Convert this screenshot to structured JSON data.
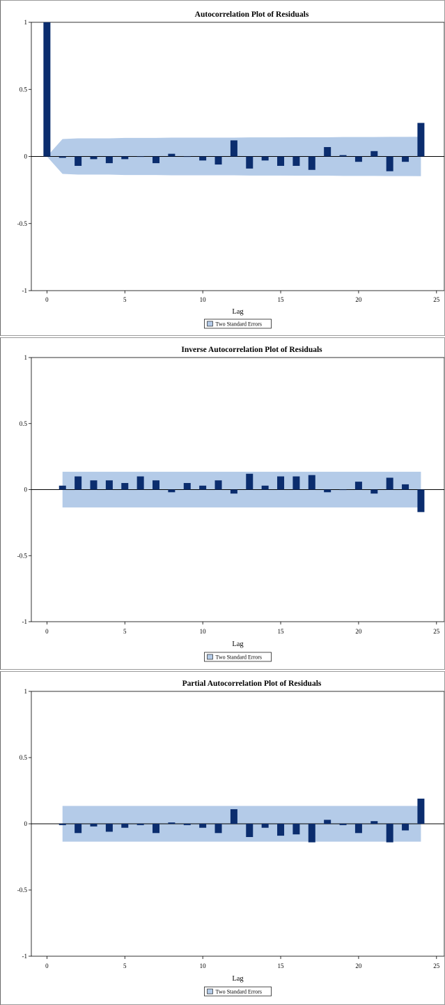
{
  "chart_data": [
    {
      "type": "bar",
      "title": "Autocorrelation Plot of Residuals",
      "xlabel": "Lag",
      "ylabel": "",
      "xlim": [
        -1,
        25.5
      ],
      "ylim": [
        -1,
        1
      ],
      "xticks": [
        0,
        5,
        10,
        15,
        20,
        25
      ],
      "yticks": [
        -1,
        -0.5,
        0,
        0.5,
        1
      ],
      "ytick_labels": [
        "-1",
        "-0.5",
        "0",
        "0.5",
        "1"
      ],
      "legend": {
        "label": "Two Standard Errors",
        "placement": "bottom-center"
      },
      "x": [
        0,
        1,
        2,
        3,
        4,
        5,
        6,
        7,
        8,
        9,
        10,
        11,
        12,
        13,
        14,
        15,
        16,
        17,
        18,
        19,
        20,
        21,
        22,
        23,
        24
      ],
      "values": [
        1.0,
        -0.01,
        -0.07,
        -0.02,
        -0.05,
        -0.02,
        0.0,
        -0.05,
        0.02,
        0.0,
        -0.03,
        -0.06,
        0.12,
        -0.09,
        -0.03,
        -0.07,
        -0.07,
        -0.1,
        0.07,
        0.01,
        -0.04,
        0.04,
        -0.11,
        -0.04,
        0.25
      ],
      "band": {
        "x": [
          0,
          1,
          2,
          3,
          4,
          5,
          6,
          7,
          8,
          9,
          10,
          11,
          12,
          13,
          14,
          15,
          16,
          17,
          18,
          19,
          20,
          21,
          22,
          23,
          24
        ],
        "upper": [
          0.0,
          0.13,
          0.135,
          0.135,
          0.135,
          0.138,
          0.138,
          0.138,
          0.14,
          0.14,
          0.14,
          0.14,
          0.14,
          0.142,
          0.142,
          0.142,
          0.143,
          0.143,
          0.143,
          0.145,
          0.145,
          0.145,
          0.146,
          0.146,
          0.147
        ],
        "lower": [
          0.0,
          -0.13,
          -0.135,
          -0.135,
          -0.135,
          -0.138,
          -0.138,
          -0.138,
          -0.14,
          -0.14,
          -0.14,
          -0.14,
          -0.14,
          -0.142,
          -0.142,
          -0.142,
          -0.143,
          -0.143,
          -0.143,
          -0.145,
          -0.145,
          -0.145,
          -0.146,
          -0.146,
          -0.147
        ]
      },
      "colors": {
        "bar": "#0b2d6e",
        "band": "#b4cbe8",
        "baseline": "#000000"
      }
    },
    {
      "type": "bar",
      "title": "Inverse Autocorrelation Plot of Residuals",
      "xlabel": "Lag",
      "ylabel": "",
      "xlim": [
        -1,
        25.5
      ],
      "ylim": [
        -1,
        1
      ],
      "xticks": [
        0,
        5,
        10,
        15,
        20,
        25
      ],
      "yticks": [
        -1,
        -0.5,
        0,
        0.5,
        1
      ],
      "ytick_labels": [
        "-1",
        "-0.5",
        "0",
        "0.5",
        "1"
      ],
      "legend": {
        "label": "Two Standard Errors",
        "placement": "bottom-center"
      },
      "x": [
        1,
        2,
        3,
        4,
        5,
        6,
        7,
        8,
        9,
        10,
        11,
        12,
        13,
        14,
        15,
        16,
        17,
        18,
        19,
        20,
        21,
        22,
        23,
        24
      ],
      "values": [
        0.03,
        0.1,
        0.07,
        0.07,
        0.05,
        0.1,
        0.07,
        -0.02,
        0.05,
        0.03,
        0.07,
        -0.03,
        0.12,
        0.03,
        0.1,
        0.1,
        0.11,
        -0.02,
        0.0,
        0.06,
        -0.03,
        0.09,
        0.04,
        -0.17
      ],
      "band": {
        "x": [
          1,
          24
        ],
        "upper": [
          0.135,
          0.135
        ],
        "lower": [
          -0.135,
          -0.135
        ]
      },
      "colors": {
        "bar": "#0b2d6e",
        "band": "#b4cbe8",
        "baseline": "#000000"
      }
    },
    {
      "type": "bar",
      "title": "Partial Autocorrelation Plot of Residuals",
      "xlabel": "Lag",
      "ylabel": "",
      "xlim": [
        -1,
        25.5
      ],
      "ylim": [
        -1,
        1
      ],
      "xticks": [
        0,
        5,
        10,
        15,
        20,
        25
      ],
      "yticks": [
        -1,
        -0.5,
        0,
        0.5,
        1
      ],
      "ytick_labels": [
        "-1",
        "-0.5",
        "0",
        "0.5",
        "1"
      ],
      "legend": {
        "label": "Two Standard Errors",
        "placement": "bottom-center"
      },
      "x": [
        1,
        2,
        3,
        4,
        5,
        6,
        7,
        8,
        9,
        10,
        11,
        12,
        13,
        14,
        15,
        16,
        17,
        18,
        19,
        20,
        21,
        22,
        23,
        24
      ],
      "values": [
        -0.01,
        -0.07,
        -0.02,
        -0.06,
        -0.03,
        -0.01,
        -0.07,
        0.01,
        -0.01,
        -0.03,
        -0.07,
        0.11,
        -0.1,
        -0.03,
        -0.09,
        -0.08,
        -0.14,
        0.03,
        -0.01,
        -0.07,
        0.02,
        -0.14,
        -0.05,
        0.19
      ],
      "band": {
        "x": [
          1,
          24
        ],
        "upper": [
          0.135,
          0.135
        ],
        "lower": [
          -0.135,
          -0.135
        ]
      },
      "colors": {
        "bar": "#0b2d6e",
        "band": "#b4cbe8",
        "baseline": "#000000"
      }
    }
  ]
}
